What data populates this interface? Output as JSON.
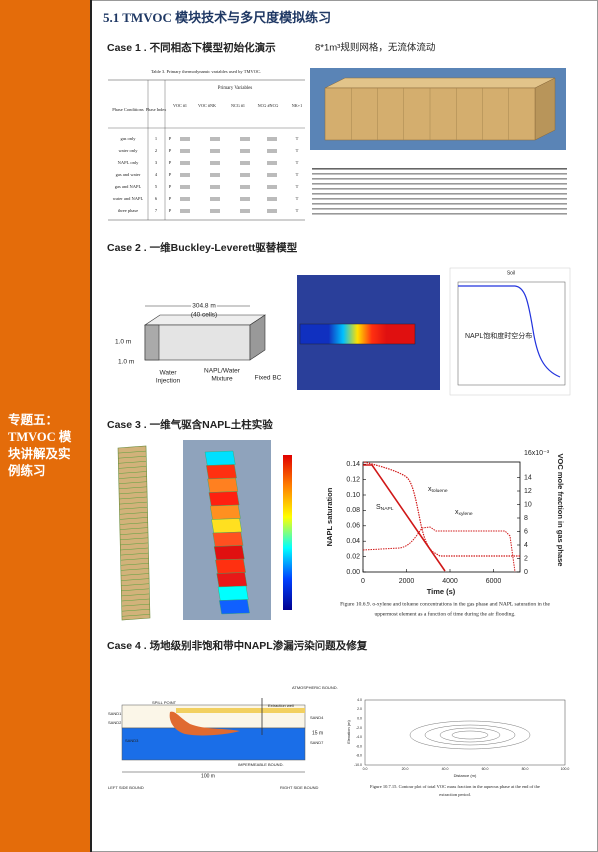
{
  "sidebar": {
    "lines": [
      "专题五：",
      "TMVOC 模",
      "块讲解及实",
      "例练习"
    ]
  },
  "header": {
    "title": "5.1 TMVOC 模块技术与多尺度模拟练习"
  },
  "case1": {
    "title": "Case 1 . 不同相态下模型初始化演示",
    "note": "8*1m³规则网格，无流体流动",
    "table": {
      "caption": "Table 3.  Primary thermodynamic variables used by TMVOC.",
      "headers": [
        "Phase Conditions",
        "Phase Index",
        "Primary Variables"
      ],
      "subheaders": [
        "VOC #1",
        "VOC #NK",
        "NCG #1",
        "NCG #NCG",
        "NK+1"
      ],
      "rows": [
        [
          "gas only",
          "1",
          "P",
          "T"
        ],
        [
          "water only",
          "2",
          "P",
          "T"
        ],
        [
          "NAPL only",
          "3",
          "P",
          "T"
        ],
        [
          "gas and water",
          "4",
          "P",
          "T"
        ],
        [
          "gas and NAPL",
          "5",
          "P",
          "T"
        ],
        [
          "water and NAPL",
          "6",
          "P",
          "T"
        ],
        [
          "three phase",
          "7",
          "P",
          "T"
        ]
      ]
    }
  },
  "case2": {
    "title": "Case 2 . 一维Buckley-Leverett驱替模型",
    "diagram": {
      "length": "304.8 m",
      "cells": "(40 cells)",
      "height": "1.0 m",
      "width": "1.0 m",
      "injection": [
        "Water",
        "Injection"
      ],
      "mixture": [
        "NAPL/Water",
        "Mixture"
      ],
      "boundary": "Fixed BC"
    },
    "plot_title": "Soil",
    "plot_note": "NAPL饱和度时空分布"
  },
  "case3": {
    "title": "Case 3 . 一维气驱含NAPL土柱实验",
    "chart": {
      "yticks": [
        "0.00",
        "0.02",
        "0.04",
        "0.06",
        "0.08",
        "0.10",
        "0.12",
        "0.14"
      ],
      "y2ticks": [
        "0",
        "2",
        "4",
        "6",
        "8",
        "10",
        "12",
        "14"
      ],
      "y2top": "16x10⁻³",
      "xticks": [
        "0",
        "2000",
        "4000",
        "6000"
      ],
      "ylabel": "NAPL saturation",
      "y2label": "VOC mole fraction in gas phase",
      "xlabel": "Time (s)",
      "labels": [
        {
          "main": "x",
          "sub": "toluene"
        },
        {
          "main": "S",
          "sub": "NAPL"
        },
        {
          "main": "x",
          "sub": "xylene"
        }
      ]
    },
    "caption": [
      "Figure 10.6.9.  o-xylene and toluene concentrations in the gas phase and NAPL saturation in the",
      "uppermost element as a function of time during the air flooding."
    ]
  },
  "case4": {
    "title": "Case 4 . 场地级别非饱和带中NAPL渗漏污染问题及修复",
    "diagram": {
      "atmos": "ATMOSPHERIC BOUND.",
      "spill": "SPILL POINT",
      "well": "Extraction well",
      "sands": [
        "SAND1",
        "SAND2",
        "SAND3",
        "SAND4",
        "SAND7"
      ],
      "depth": "15 m",
      "length": "100 m",
      "bottom": "IMPERMEABLE BOUND.",
      "left": "LEFT SIDE BOUND",
      "right": "RIGHT SIDE BOUND"
    },
    "contour": {
      "xlabel": "Distance (m)",
      "ylabel": "Elevation (m)",
      "xticks": [
        "0.0",
        "20.0",
        "40.0",
        "60.0",
        "80.0",
        "100.0"
      ],
      "yticks": [
        "4.0",
        "2.0",
        "0.0",
        "-2.0",
        "-4.0",
        "-6.0",
        "-8.0",
        "-10.0"
      ]
    },
    "caption": [
      "Figure 10.7.15.  Contour plot of total VOC mass fraction in the aqueous phase at the end of the",
      "extraction period."
    ]
  }
}
